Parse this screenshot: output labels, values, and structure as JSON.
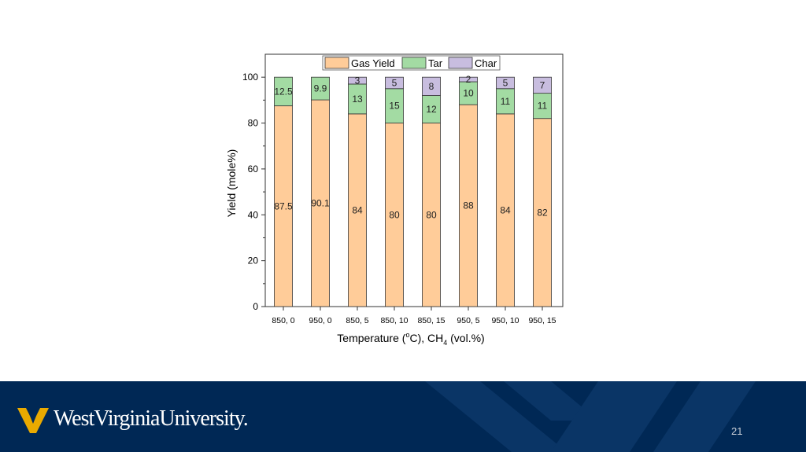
{
  "chart_data": {
    "type": "bar",
    "stacked": true,
    "categories": [
      "850, 0",
      "950, 0",
      "850, 5",
      "850, 10",
      "850, 15",
      "950, 5",
      "950, 10",
      "950, 15"
    ],
    "series": [
      {
        "name": "Gas Yield",
        "values": [
          87.5,
          90.1,
          84,
          80,
          80,
          88,
          84,
          82
        ],
        "labels": [
          "87.5",
          "90.1",
          "84",
          "80",
          "80",
          "88",
          "84",
          "82"
        ],
        "color": "#FFCC99"
      },
      {
        "name": "Tar",
        "values": [
          12.5,
          9.9,
          13,
          15,
          12,
          10,
          11,
          11
        ],
        "labels": [
          "12.5",
          "9.9",
          "13",
          "15",
          "12",
          "10",
          "11",
          "11"
        ],
        "color": "#A3DBA3"
      },
      {
        "name": "Char",
        "values": [
          0,
          0,
          3,
          5,
          8,
          2,
          5,
          7
        ],
        "labels": [
          "",
          "",
          "3",
          "5",
          "8",
          "2",
          "5",
          "7"
        ],
        "color": "#C8BDDF"
      }
    ],
    "ylabel": "Yield (mole%)",
    "xlabel": "Temperature (oC), CH4 (vol.%)",
    "xlabel_parts": {
      "pre": "Temperature (",
      "sup": "o",
      "mid": "C), CH",
      "sub": "4",
      "post": " (vol.%)"
    },
    "ylim": [
      0,
      110
    ],
    "yticks": [
      0,
      20,
      40,
      60,
      80,
      100
    ],
    "legend_position": "top"
  },
  "footer": {
    "logo_text": "WestVirginiaUniversity.",
    "page_number": "21",
    "background": "#002855"
  }
}
